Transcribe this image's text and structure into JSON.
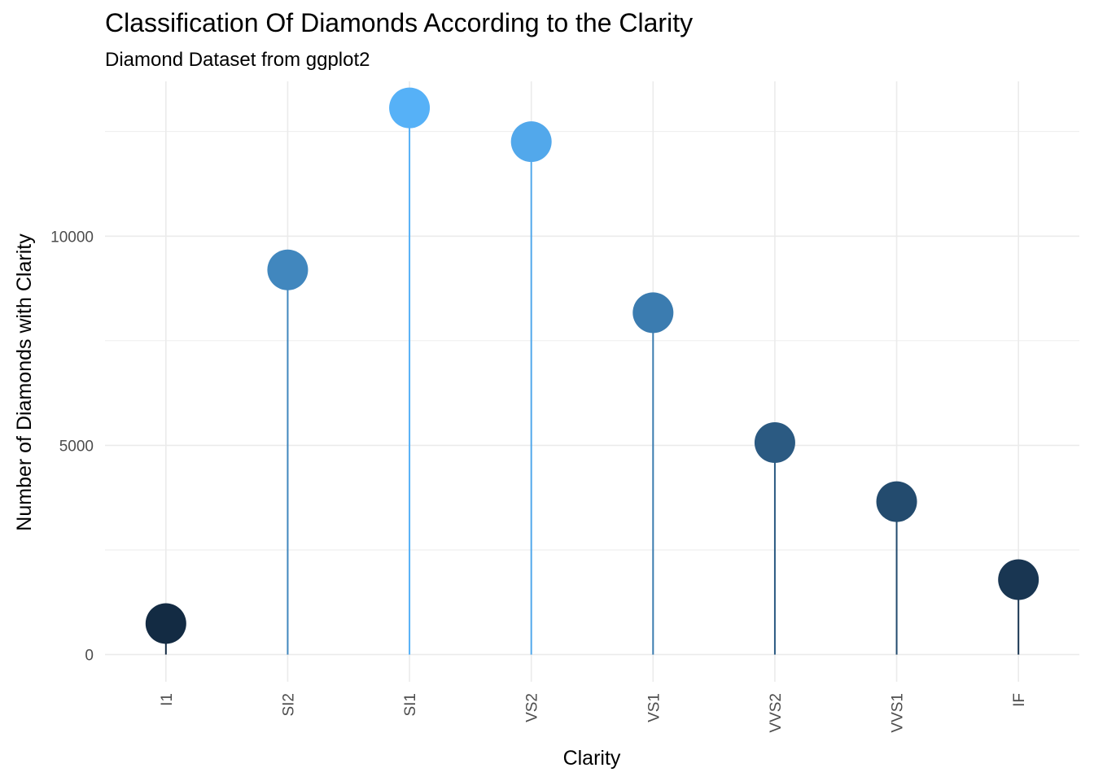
{
  "chart_data": {
    "type": "lollipop",
    "title": "Classification Of Diamonds According to the Clarity",
    "subtitle": "Diamond Dataset from ggplot2",
    "xlabel": "Clarity",
    "ylabel": "Number of Diamonds with Clarity",
    "categories": [
      "I1",
      "SI2",
      "SI1",
      "VS2",
      "VS1",
      "VVS2",
      "VVS1",
      "IF"
    ],
    "values": [
      741,
      9194,
      13065,
      12258,
      8171,
      5066,
      3655,
      1790
    ],
    "ylim": [
      -650,
      13700
    ],
    "yticks": [
      0,
      5000,
      10000
    ],
    "grid": true,
    "color_low": "#132B43",
    "color_high": "#56B1F7"
  }
}
